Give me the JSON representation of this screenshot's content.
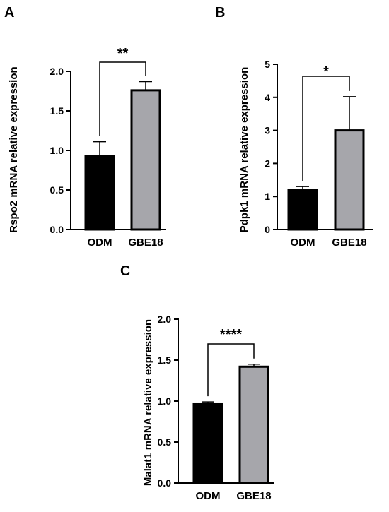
{
  "chart_data": [
    {
      "type": "bar",
      "panel": "A",
      "categories": [
        "ODM",
        "GBE18"
      ],
      "values": [
        0.93,
        1.76
      ],
      "errors": [
        0.18,
        0.11
      ],
      "colors": [
        "#000000",
        "#a6a6ab"
      ],
      "ylabel": "Rspo2 mRNA relative expression",
      "ylim": [
        0,
        2.0
      ],
      "yticks": [
        "0.0",
        "0.5",
        "1.0",
        "1.5",
        "2.0"
      ],
      "significance": "**"
    },
    {
      "type": "bar",
      "panel": "B",
      "categories": [
        "ODM",
        "GBE18"
      ],
      "values": [
        1.2,
        3.0
      ],
      "errors": [
        0.1,
        1.02
      ],
      "colors": [
        "#000000",
        "#a6a6ab"
      ],
      "ylabel": "Pdpk1 mRNA relative expression",
      "ylim": [
        0,
        5
      ],
      "yticks": [
        "0",
        "1",
        "2",
        "3",
        "4",
        "5"
      ],
      "significance": "*"
    },
    {
      "type": "bar",
      "panel": "C",
      "categories": [
        "ODM",
        "GBE18"
      ],
      "values": [
        0.97,
        1.42
      ],
      "errors": [
        0.02,
        0.03
      ],
      "colors": [
        "#000000",
        "#a6a6ab"
      ],
      "ylabel": "Malat1 mRNA relative expression",
      "ylim": [
        0,
        2.0
      ],
      "yticks": [
        "0.0",
        "0.5",
        "1.0",
        "1.5",
        "2.0"
      ],
      "significance": "****"
    }
  ]
}
